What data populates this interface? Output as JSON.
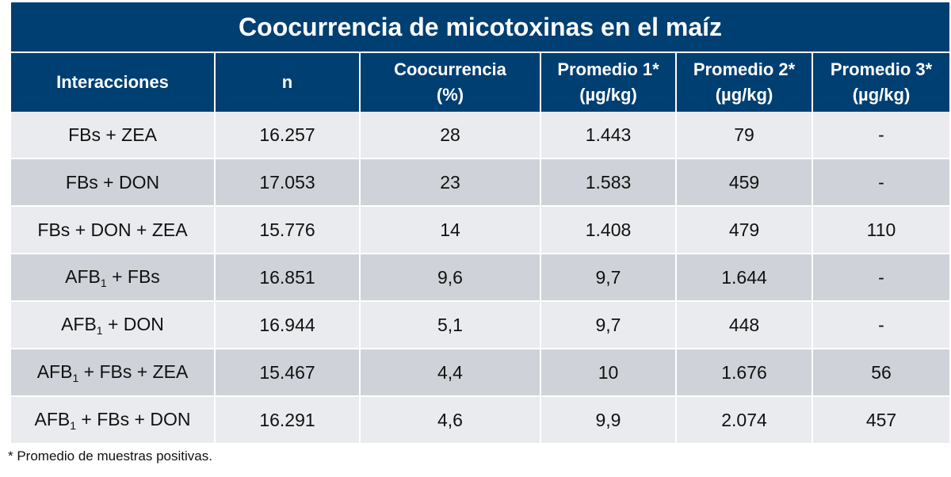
{
  "title": "Coocurrencia de micotoxinas en el maíz",
  "headers": [
    {
      "line1": "Interacciones",
      "line2": ""
    },
    {
      "line1": "n",
      "line2": ""
    },
    {
      "line1": "Coocurrencia",
      "line2": "(%)"
    },
    {
      "line1": "Promedio 1*",
      "line2": "(µg/kg)"
    },
    {
      "line1": "Promedio 2*",
      "line2": "(µg/kg)"
    },
    {
      "line1": "Promedio 3*",
      "line2": "(µg/kg)"
    }
  ],
  "rows": [
    {
      "afb": "",
      "afb_sub": "",
      "interaction": "FBs + ZEA",
      "n": "16.257",
      "coocurrencia": "28",
      "promedio1": "1.443",
      "promedio2": "79",
      "promedio3": "-"
    },
    {
      "afb": "",
      "afb_sub": "",
      "interaction": "FBs + DON",
      "n": "17.053",
      "coocurrencia": "23",
      "promedio1": "1.583",
      "promedio2": "459",
      "promedio3": "-"
    },
    {
      "afb": "",
      "afb_sub": "",
      "interaction": "FBs + DON + ZEA",
      "n": "15.776",
      "coocurrencia": "14",
      "promedio1": "1.408",
      "promedio2": "479",
      "promedio3": "110"
    },
    {
      "afb": "AFB",
      "afb_sub": "1",
      "interaction": " + FBs",
      "n": "16.851",
      "coocurrencia": "9,6",
      "promedio1": "9,7",
      "promedio2": "1.644",
      "promedio3": "-"
    },
    {
      "afb": "AFB",
      "afb_sub": "1",
      "interaction": " + DON",
      "n": "16.944",
      "coocurrencia": "5,1",
      "promedio1": "9,7",
      "promedio2": "448",
      "promedio3": "-"
    },
    {
      "afb": "AFB",
      "afb_sub": "1",
      "interaction": " + FBs + ZEA",
      "n": "15.467",
      "coocurrencia": "4,4",
      "promedio1": "10",
      "promedio2": "1.676",
      "promedio3": "56"
    },
    {
      "afb": "AFB",
      "afb_sub": "1",
      "interaction": " + FBs + DON",
      "n": "16.291",
      "coocurrencia": "4,6",
      "promedio1": "9,9",
      "promedio2": "2.074",
      "promedio3": "457"
    }
  ],
  "footnote": "* Promedio de muestras positivas.",
  "colors": {
    "header_bg": "#003f72",
    "row_light": "#e9ebee",
    "row_dark": "#cfd3d9"
  }
}
